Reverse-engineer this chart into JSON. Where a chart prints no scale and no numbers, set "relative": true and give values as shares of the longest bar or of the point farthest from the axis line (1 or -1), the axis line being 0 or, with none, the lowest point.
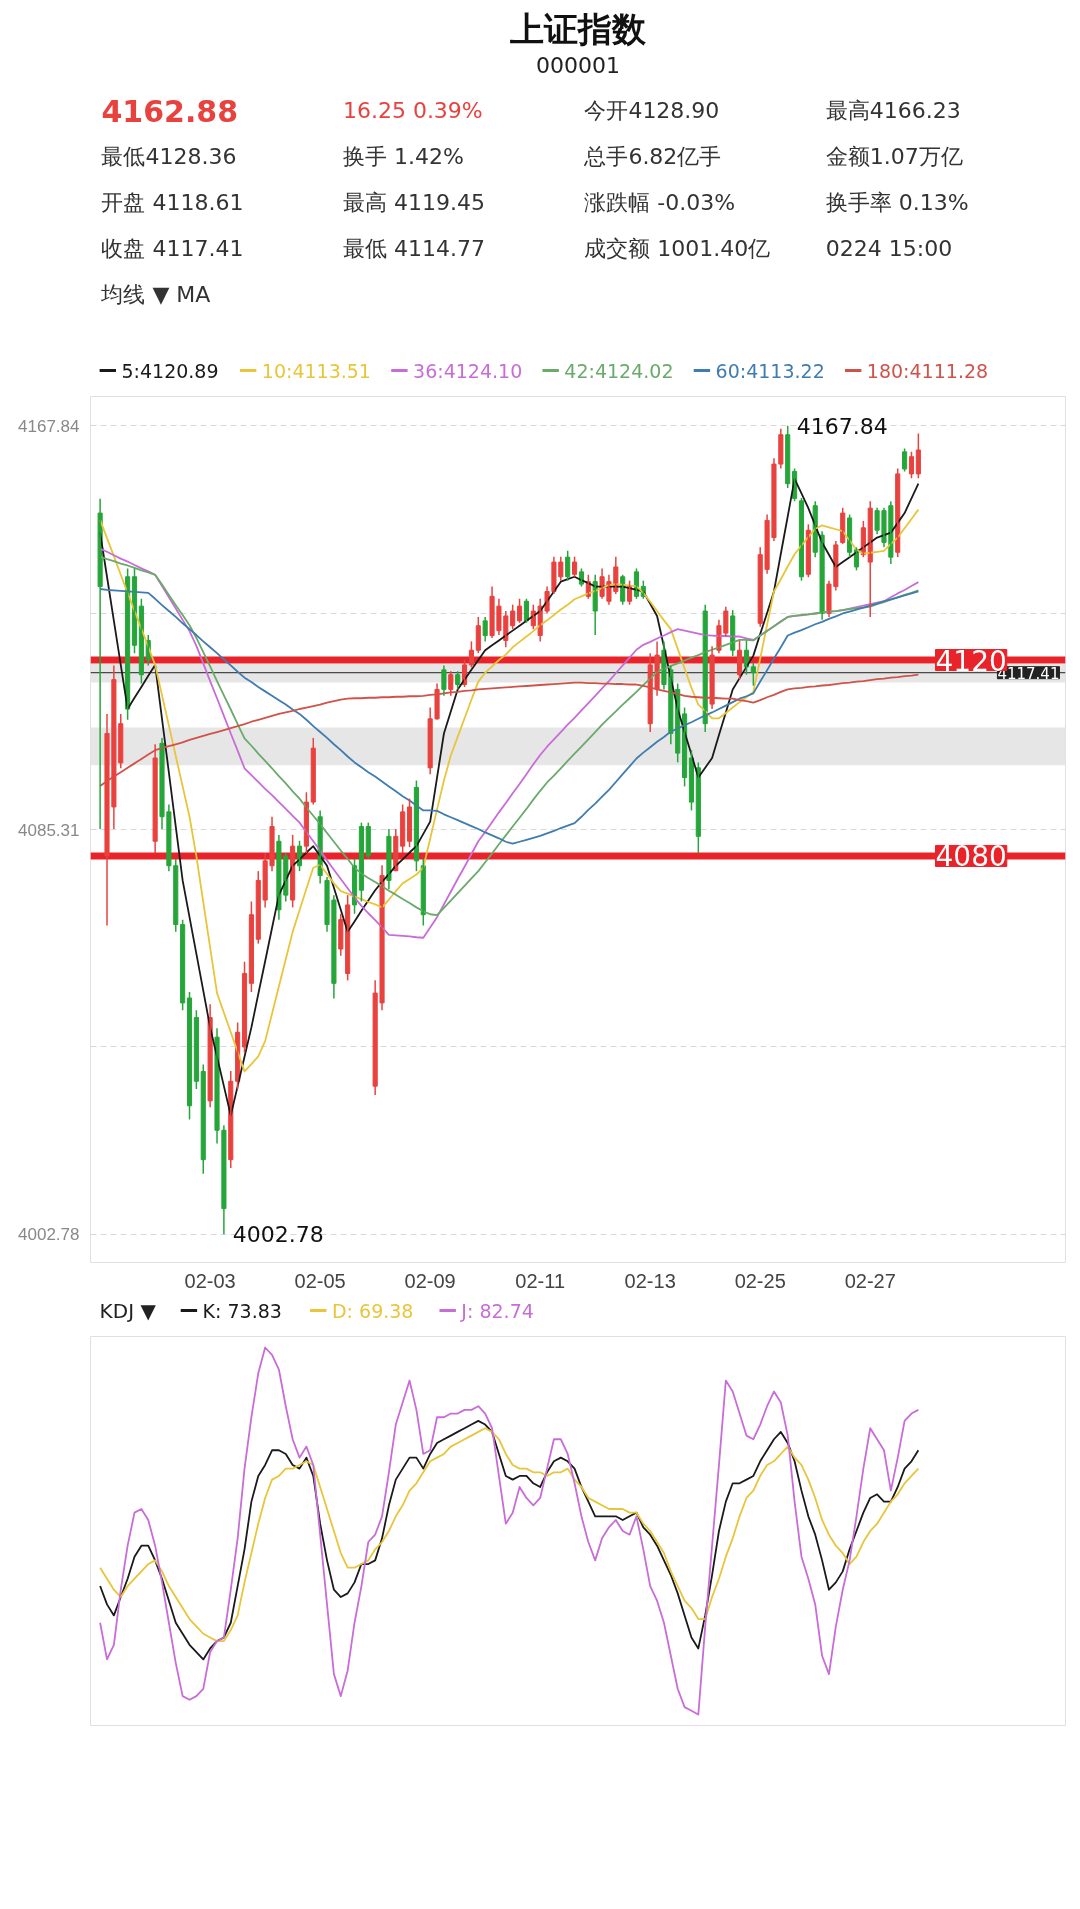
{
  "chart_data": [
    {
      "type": "candlestick",
      "title": "上证指数",
      "subtitle": "000001",
      "annotations": [
        "4162.88",
        "16.25 0.39%",
        "今开4128.90",
        "最高4166.23",
        "最低4128.36",
        "换手 1.42%",
        "总手6.82亿手",
        "金额1.07万亿",
        "开盘 4118.61",
        "最高 4119.45",
        "涨跌幅 -0.03%",
        "换手率 0.13%",
        "收盘 4117.41",
        "最低 4114.77",
        "成交额 1001.40亿",
        "0224 15:00",
        "均线 ▼ MA",
        "4167.84",
        "4002.78"
      ],
      "categories": [
        null,
        null,
        null,
        null,
        null,
        null,
        null,
        null,
        null,
        null,
        null,
        null,
        null,
        null,
        null,
        null,
        "02-03",
        null,
        null,
        null,
        null,
        null,
        null,
        null,
        null,
        null,
        null,
        null,
        null,
        null,
        null,
        null,
        "02-05",
        null,
        null,
        null,
        null,
        null,
        null,
        null,
        null,
        null,
        null,
        null,
        null,
        null,
        null,
        null,
        "02-09",
        null,
        null,
        null,
        null,
        null,
        null,
        null,
        null,
        null,
        null,
        null,
        null,
        null,
        null,
        null,
        "02-11",
        null,
        null,
        null,
        null,
        null,
        null,
        null,
        null,
        null,
        null,
        null,
        null,
        null,
        null,
        null,
        "02-13",
        null,
        null,
        null,
        null,
        null,
        null,
        null,
        null,
        null,
        null,
        null,
        null,
        null,
        null,
        null,
        "02-25",
        null,
        null,
        null,
        null,
        null,
        null,
        null,
        null,
        null,
        null,
        null,
        null,
        null,
        null,
        null,
        "02-27",
        null,
        null,
        null,
        null,
        null,
        null,
        null
      ],
      "ohlc": [
        [
          4150,
          4152.9,
          4085.5,
          4135
        ],
        [
          4080,
          4109,
          4065.8,
          4105
        ],
        [
          4090,
          4118.9,
          4085.5,
          4116
        ],
        [
          4099,
          4109,
          4097.9,
          4107
        ],
        [
          4137,
          4138.7,
          4107.8,
          4110
        ],
        [
          4137,
          4138.7,
          4121.4,
          4123
        ],
        [
          4131,
          4132.5,
          4115.2,
          4117
        ],
        [
          4124,
          4125.1,
          4118.9,
          4120
        ],
        [
          4083,
          4102.8,
          4080.6,
          4100
        ],
        [
          4103,
          4104.1,
          4085.5,
          4088
        ],
        [
          4089,
          4090.5,
          4076.9,
          4078
        ],
        [
          4078,
          4079.4,
          4064.5,
          4066
        ],
        [
          4066,
          4067,
          4048.5,
          4050
        ],
        [
          4051,
          4052.2,
          4026.2,
          4029
        ],
        [
          4047,
          4048.5,
          4032.4,
          4034
        ],
        [
          4036,
          4037.4,
          4015.1,
          4018
        ],
        [
          4030,
          4049.7,
          4028.7,
          4047
        ],
        [
          4043,
          4044.8,
          4021.3,
          4024
        ],
        [
          4024,
          4025,
          4002.78,
          4008
        ],
        [
          4018,
          4036.1,
          4016.3,
          4034
        ],
        [
          4034,
          4046,
          4032.4,
          4044
        ],
        [
          4041,
          4058.4,
          4039.8,
          4056
        ],
        [
          4054,
          4070.7,
          4052.2,
          4068
        ],
        [
          4063,
          4076.9,
          4062.1,
          4075
        ],
        [
          4071,
          4080.6,
          4069.5,
          4079
        ],
        [
          4078,
          4088,
          4076.9,
          4086
        ],
        [
          4083,
          4084.3,
          4067,
          4069
        ],
        [
          4080,
          4080.6,
          4070.7,
          4072
        ],
        [
          4071,
          4084.3,
          4069.5,
          4082
        ],
        [
          4082,
          4083.1,
          4076.9,
          4078
        ],
        [
          4082,
          4093,
          4080.6,
          4091
        ],
        [
          4091,
          4104.1,
          4090.5,
          4102
        ],
        [
          4088,
          4089.3,
          4074.4,
          4076
        ],
        [
          4075,
          4075.7,
          4064.5,
          4066
        ],
        [
          4071,
          4072,
          4050.9,
          4054
        ],
        [
          4061,
          4068.2,
          4059.6,
          4067
        ],
        [
          4056,
          4072,
          4054.6,
          4070
        ],
        [
          4078,
          4079.4,
          4068.2,
          4070
        ],
        [
          4086,
          4086.8,
          4070.7,
          4073
        ],
        [
          4086,
          4086.8,
          4079.4,
          4080
        ],
        [
          4033,
          4054.6,
          4031.2,
          4052
        ],
        [
          4050,
          4078.1,
          4048.5,
          4076
        ],
        [
          4084,
          4085.5,
          4073.2,
          4075
        ],
        [
          4077,
          4085.5,
          4076.9,
          4084
        ],
        [
          4082,
          4090.5,
          4080.6,
          4089
        ],
        [
          4083,
          4091.7,
          4081.8,
          4090
        ],
        [
          4094,
          4095.4,
          4076.9,
          4079
        ],
        [
          4078,
          4079.4,
          4065.8,
          4068
        ],
        [
          4098,
          4110.3,
          4096.7,
          4108
        ],
        [
          4108,
          4115.2,
          4107.8,
          4114
        ],
        [
          4118,
          4118.9,
          4112.7,
          4114
        ],
        [
          4114,
          4117.7,
          4112.7,
          4117
        ],
        [
          4117,
          4117.7,
          4114,
          4115
        ],
        [
          4115,
          4120.1,
          4114.5,
          4119
        ],
        [
          4119,
          4123.8,
          4118.5,
          4122
        ],
        [
          4122,
          4128.8,
          4121.4,
          4127
        ],
        [
          4128,
          4128.8,
          4123.8,
          4125
        ],
        [
          4125,
          4135,
          4124.5,
          4133
        ],
        [
          4126,
          4132.5,
          4125.1,
          4131
        ],
        [
          4124,
          4130,
          4122.6,
          4129
        ],
        [
          4127,
          4131.3,
          4126.3,
          4130
        ],
        [
          4128,
          4132.5,
          4127.6,
          4131
        ],
        [
          4132,
          4132.5,
          4127.6,
          4128
        ],
        [
          4127,
          4131.3,
          4126.3,
          4130
        ],
        [
          4125,
          4132.5,
          4123.8,
          4131
        ],
        [
          4130,
          4135,
          4129.5,
          4134
        ],
        [
          4134,
          4141.1,
          4133.5,
          4140
        ],
        [
          4137,
          4141.1,
          4136.2,
          4140
        ],
        [
          4141,
          4142.3,
          4136.2,
          4137
        ],
        [
          4137.5,
          4141.1,
          4137,
          4140
        ],
        [
          4138,
          4138.7,
          4135,
          4135.5
        ],
        [
          4133,
          4137.4,
          4132.5,
          4136
        ],
        [
          4136,
          4137.4,
          4125.1,
          4130
        ],
        [
          4133,
          4138.7,
          4132.5,
          4137
        ],
        [
          4132,
          4137.4,
          4131.3,
          4136
        ],
        [
          4134,
          4141.1,
          4133.5,
          4139
        ],
        [
          4137,
          4137.4,
          4131.3,
          4132
        ],
        [
          4132,
          4136.2,
          4131.3,
          4135
        ],
        [
          4138,
          4138.7,
          4132.5,
          4133
        ],
        [
          4135,
          4136.2,
          4132.5,
          4133
        ],
        [
          4107,
          4121.4,
          4105.3,
          4119
        ],
        [
          4114,
          4123.8,
          4112.7,
          4121
        ],
        [
          4122,
          4123.8,
          4114,
          4115
        ],
        [
          4118,
          4118.9,
          4102.8,
          4105
        ],
        [
          4114,
          4115.2,
          4099.1,
          4101
        ],
        [
          4109,
          4110.3,
          4094.2,
          4096
        ],
        [
          4100,
          4101.6,
          4089.3,
          4091
        ],
        [
          4098,
          4099.1,
          4080.6,
          4084
        ],
        [
          4130,
          4131.3,
          4105.3,
          4107
        ],
        [
          4111,
          4122.8,
          4110,
          4121
        ],
        [
          4122,
          4128.2,
          4121.4,
          4127
        ],
        [
          4125.5,
          4130.9,
          4124.8,
          4130
        ],
        [
          4129,
          4130.2,
          4120.8,
          4122
        ],
        [
          4117,
          4124,
          4116,
          4122
        ],
        [
          4122,
          4124,
          4117,
          4118.6
        ],
        [
          4118.61,
          4119.45,
          4114.77,
          4117.41
        ],
        [
          4127.5,
          4143,
          4126.8,
          4141.5
        ],
        [
          4138.5,
          4149.7,
          4137.6,
          4148.5
        ],
        [
          4145,
          4161.2,
          4144.3,
          4160
        ],
        [
          4160,
          4167.2,
          4159.1,
          4166
        ],
        [
          4166,
          4167.84,
          4155.1,
          4156
        ],
        [
          4158.5,
          4159.1,
          4152.4,
          4153
        ],
        [
          4152.5,
          4153.1,
          4136.2,
          4137
        ],
        [
          4137.5,
          4147.7,
          4136.9,
          4146.5
        ],
        [
          4151.5,
          4152.4,
          4141,
          4142
        ],
        [
          4145.5,
          4146.3,
          4128.2,
          4129.5
        ],
        [
          4129.5,
          4136.2,
          4128.8,
          4135.5
        ],
        [
          4135,
          4144.3,
          4134.2,
          4143.5
        ],
        [
          4144,
          4151.1,
          4143.7,
          4150
        ],
        [
          4149,
          4149.7,
          4141,
          4142
        ],
        [
          4142.5,
          4143,
          4138.3,
          4139
        ],
        [
          4141.5,
          4148.4,
          4141,
          4147
        ],
        [
          4140,
          4152.4,
          4128.8,
          4151
        ],
        [
          4150.5,
          4151.1,
          4145.7,
          4146.5
        ],
        [
          4150.5,
          4151.1,
          4143,
          4144
        ],
        [
          4151.5,
          4152.4,
          4139.6,
          4141
        ],
        [
          4142,
          4159.1,
          4141,
          4158
        ],
        [
          4162.5,
          4163.2,
          4158.5,
          4159
        ],
        [
          4158,
          4162.5,
          4157.1,
          4161.5
        ],
        [
          4158,
          4166.23,
          4157.1,
          4162.88
        ]
      ],
      "series": [
        {
          "name": "5:4120.89",
          "type": "line",
          "color": "#1a1a1a",
          "values": [
            4146,
            4137,
            4128,
            4119,
            4110,
            4112.3,
            4114.5,
            4116.8,
            4119,
            4108,
            4097,
            4086,
            4075,
            4067.5,
            4060,
            4052.5,
            4045,
            4039,
            4033,
            4027,
            4033,
            4039,
            4045,
            4051.8,
            4058.5,
            4065.3,
            4072,
            4075,
            4078,
            4079.3,
            4080.7,
            4082,
            4080,
            4078,
            4073.5,
            4069,
            4064.5,
            4066.6,
            4068.8,
            4070.9,
            4073,
            4074.7,
            4076.3,
            4078,
            4079.3,
            4080.7,
            4082,
            4084.5,
            4087,
            4096,
            4105,
            4109.5,
            4114,
            4116,
            4118,
            4120,
            4122,
            4123,
            4124,
            4125,
            4126,
            4127,
            4128,
            4129,
            4130,
            4132,
            4134,
            4136,
            4136.5,
            4137,
            4136.3,
            4135.7,
            4135,
            4135,
            4135,
            4135,
            4135,
            4134.7,
            4134.3,
            4134,
            4131.5,
            4129,
            4122.7,
            4116.3,
            4110,
            4105.3,
            4100.7,
            4096,
            4098,
            4100,
            4104.7,
            4109.3,
            4114,
            4116.3,
            4118.6,
            4120.9,
            4125.3,
            4129.6,
            4134,
            4141.7,
            4149.3,
            4157,
            4154,
            4151,
            4147.5,
            4144,
            4141.5,
            4139,
            4140,
            4141,
            4142,
            4143,
            4144,
            4145,
            4145.5,
            4146,
            4148,
            4150,
            4153,
            4156
          ]
        },
        {
          "name": "10:4113.51",
          "type": "line",
          "color": "#e8c53a",
          "values": [
            4148.6,
            4144.9,
            4141.2,
            4137.4,
            4133.7,
            4130,
            4126.4,
            4122.7,
            4119,
            4112.8,
            4106.6,
            4100.4,
            4094.2,
            4088,
            4079.9,
            4070.6,
            4061.3,
            4052,
            4048,
            4044,
            4040,
            4036,
            4037.5,
            4039.1,
            4042.2,
            4047.8,
            4053.4,
            4058.9,
            4064.5,
            4068.9,
            4073.3,
            4077.6,
            4078.2,
            4076.3,
            4074.4,
            4072.8,
            4072.3,
            4071.7,
            4071.2,
            4070.6,
            4070.1,
            4069.5,
            4071.1,
            4072.8,
            4074.4,
            4075.3,
            4076.2,
            4077.6,
            4083.5,
            4089.5,
            4095.4,
            4100.5,
            4104.3,
            4108.1,
            4111.9,
            4115.6,
            4117.4,
            4118.7,
            4120,
            4121.1,
            4122.6,
            4123.7,
            4124.8,
            4125.9,
            4127.1,
            4128.1,
            4129.2,
            4130.3,
            4131.3,
            4132.4,
            4133,
            4133.6,
            4134.1,
            4134.7,
            4135.3,
            4135.5,
            4135.4,
            4135.2,
            4135.1,
            4133.7,
            4131.9,
            4130,
            4128.1,
            4126.3,
            4122.3,
            4118.3,
            4114.3,
            4110.9,
            4109.6,
            4108.1,
            4108.1,
            4109.2,
            4110.3,
            4111.4,
            4112.4,
            4113.5,
            4120.3,
            4127.2,
            4134,
            4136.5,
            4139.1,
            4141.6,
            4143.4,
            4145.1,
            4146.8,
            4147.5,
            4147.1,
            4146.7,
            4146.3,
            4144.4,
            4142.5,
            4141.7,
            4141.9,
            4142.1,
            4142.3,
            4143.7,
            4145,
            4146.9,
            4148.8,
            4150.7
          ]
        },
        {
          "name": "36:4124.10",
          "type": "line",
          "color": "#c86dd7",
          "values": [
            4142.7,
            4142.1,
            4141.4,
            4140.7,
            4140.1,
            4139.4,
            4138.7,
            4138.1,
            4137.4,
            4135.1,
            4132.8,
            4130.5,
            4128.2,
            4125.9,
            4122.9,
            4119.3,
            4115.7,
            4112.2,
            4108.6,
            4105,
            4101.5,
            4097.9,
            4096.5,
            4095.1,
            4093.7,
            4092.4,
            4091,
            4089.6,
            4088.2,
            4086.8,
            4084.9,
            4083,
            4081.1,
            4079.1,
            4077.2,
            4075.3,
            4073.4,
            4071.5,
            4069.8,
            4068.3,
            4066.9,
            4065.4,
            4063.9,
            4063.8,
            4063.7,
            4063.6,
            4063.4,
            4063.3,
            4065.4,
            4067.5,
            4070.1,
            4072.7,
            4075.3,
            4077.8,
            4080.4,
            4083,
            4084.9,
            4086.9,
            4088.9,
            4090.8,
            4092.8,
            4094.7,
            4096.7,
            4098.7,
            4100.6,
            4102.3,
            4103.8,
            4105.3,
            4106.8,
            4108.2,
            4109.7,
            4111.2,
            4112.7,
            4114.2,
            4115.7,
            4117.3,
            4118.9,
            4120.5,
            4122.1,
            4123.1,
            4123.7,
            4124.4,
            4125,
            4125.7,
            4126.3,
            4126,
            4125.7,
            4125.4,
            4125.1,
            4125,
            4124.9,
            4124.9,
            4124.8,
            4124.8,
            4124.4,
            4124.1,
            4125,
            4126,
            4126.9,
            4127.9,
            4128.8,
            4129,
            4129.1,
            4129.3,
            4129.5,
            4129.7,
            4129.9,
            4130,
            4130.2,
            4130.5,
            4130.8,
            4131.1,
            4131.4,
            4131.7,
            4132,
            4132.8,
            4133.6,
            4134.3,
            4135.1,
            4135.9
          ]
        },
        {
          "name": "42:4124.02",
          "type": "line",
          "color": "#6aaa6a",
          "values": [
            4141.1,
            4140.6,
            4140.2,
            4139.7,
            4139.3,
            4138.8,
            4138.3,
            4137.9,
            4137.4,
            4135.4,
            4133.3,
            4131.2,
            4129.2,
            4127.1,
            4124.5,
            4121.6,
            4118.7,
            4115.7,
            4112.8,
            4109.9,
            4106.9,
            4104,
            4102.5,
            4100.9,
            4099.4,
            4097.9,
            4096.3,
            4094.8,
            4093.2,
            4091.7,
            4089.9,
            4088.2,
            4086.5,
            4084.7,
            4082.9,
            4081.1,
            4079.4,
            4077.6,
            4076.4,
            4075.5,
            4074.7,
            4073.8,
            4072.9,
            4072.1,
            4071.2,
            4070.4,
            4069.5,
            4068.7,
            4068.1,
            4067.9,
            4069.4,
            4070.9,
            4072.4,
            4073.9,
            4075.4,
            4076.9,
            4078.7,
            4080.5,
            4082.4,
            4084.2,
            4086,
            4087.8,
            4089.6,
            4091.5,
            4093.3,
            4095,
            4096.4,
            4097.9,
            4099.4,
            4100.9,
            4102.3,
            4103.8,
            4105.3,
            4106.8,
            4108.2,
            4109.5,
            4110.9,
            4112.2,
            4113.5,
            4114.9,
            4116.2,
            4117.6,
            4118.2,
            4118.8,
            4119.3,
            4119.9,
            4120.5,
            4121,
            4121.6,
            4122.1,
            4122.6,
            4123.1,
            4123.6,
            4124.1,
            4124.1,
            4124,
            4125,
            4125.9,
            4126.9,
            4127.8,
            4128.8,
            4129,
            4129.2,
            4129.3,
            4129.5,
            4129.7,
            4129.9,
            4130,
            4130.2,
            4130.4,
            4130.6,
            4130.7,
            4130.9,
            4131.4,
            4131.8,
            4132.3,
            4132.8,
            4133.3,
            4133.7,
            4134.2
          ]
        },
        {
          "name": "60:4113.22",
          "type": "line",
          "color": "#3f7cb0",
          "values": [
            4134.5,
            4134.3,
            4134.2,
            4134.1,
            4134,
            4133.9,
            4133.8,
            4133.7,
            4132.5,
            4131.2,
            4130,
            4128.8,
            4127.5,
            4126.3,
            4125.1,
            4123.8,
            4122.6,
            4121.4,
            4120.1,
            4118.9,
            4117.6,
            4116.4,
            4115.5,
            4114.5,
            4113.6,
            4112.7,
            4111.8,
            4110.9,
            4109.9,
            4109,
            4107.8,
            4106.5,
            4105.3,
            4104.1,
            4102.8,
            4101.6,
            4100.3,
            4099.1,
            4098.1,
            4097.1,
            4096.2,
            4095.2,
            4094.2,
            4093.2,
            4092.2,
            4091.3,
            4090.3,
            4089.3,
            4089.3,
            4089.2,
            4088.5,
            4087.9,
            4087.3,
            4086.7,
            4086.1,
            4085.5,
            4084.8,
            4084.2,
            4083.6,
            4082.9,
            4082.5,
            4082.9,
            4083.3,
            4083.7,
            4084.1,
            4084.6,
            4085.1,
            4085.7,
            4086.2,
            4086.7,
            4088,
            4089.4,
            4090.7,
            4092.1,
            4093.5,
            4095.1,
            4096.7,
            4098.3,
            4099.9,
            4101.1,
            4102.2,
            4103.3,
            4104.3,
            4105.4,
            4106,
            4106.7,
            4107.3,
            4108,
            4108.7,
            4109.3,
            4110,
            4110.7,
            4111.4,
            4112.1,
            4112.6,
            4113.2,
            4115.6,
            4117.9,
            4120.3,
            4122.6,
            4125,
            4125.6,
            4126.1,
            4126.7,
            4127.3,
            4127.8,
            4128.4,
            4128.9,
            4129.5,
            4129.9,
            4130.3,
            4130.7,
            4131.1,
            4131.5,
            4132,
            4132.4,
            4132.8,
            4133.2,
            4133.6,
            4134
          ]
        },
        {
          "name": "180:4111.28",
          "type": "line",
          "color": "#d0534a",
          "values": [
            4094.3,
            4095.3,
            4096.2,
            4097.1,
            4098,
            4098.9,
            4099.8,
            4100.7,
            4101.6,
            4102,
            4102.4,
            4102.8,
            4103.2,
            4103.7,
            4104.1,
            4104.5,
            4104.9,
            4105.3,
            4105.7,
            4106.1,
            4106.5,
            4106.9,
            4107.4,
            4107.8,
            4108.2,
            4108.6,
            4109,
            4109.3,
            4109.6,
            4110,
            4110.3,
            4110.6,
            4110.9,
            4111.3,
            4111.6,
            4111.9,
            4112.1,
            4112.2,
            4112.2,
            4112.3,
            4112.3,
            4112.4,
            4112.4,
            4112.5,
            4112.5,
            4112.6,
            4112.6,
            4112.7,
            4112.9,
            4113,
            4113.2,
            4113.4,
            4113.5,
            4113.7,
            4113.8,
            4114,
            4114.1,
            4114.2,
            4114.3,
            4114.4,
            4114.5,
            4114.6,
            4114.7,
            4114.8,
            4114.9,
            4115,
            4115.1,
            4115.2,
            4115.3,
            4115.4,
            4115.4,
            4115.3,
            4115.3,
            4115.2,
            4115.2,
            4115.1,
            4115.1,
            4115,
            4115,
            4114.7,
            4114.4,
            4114,
            4113.7,
            4113.4,
            4113.1,
            4112.7,
            4112.5,
            4112.4,
            4112.3,
            4112.3,
            4112.2,
            4112.1,
            4112.1,
            4111.8,
            4111.6,
            4111.3,
            4111.8,
            4112.4,
            4112.9,
            4113.5,
            4114,
            4114.2,
            4114.3,
            4114.5,
            4114.6,
            4114.8,
            4114.9,
            4115.1,
            4115.3,
            4115.4,
            4115.6,
            4115.7,
            4115.9,
            4116.1,
            4116.2,
            4116.4,
            4116.5,
            4116.7,
            4116.8,
            4117
          ]
        }
      ],
      "ylim": [
        3997,
        4173.8
      ],
      "yticks": [
        {
          "value": 4173.8,
          "label": null
        },
        4167.84,
        {
          "value": 4129.55,
          "label": null
        },
        4085.31,
        {
          "value": 4041.06,
          "label": null
        },
        4002.78
      ],
      "grid": "y",
      "legend": "top",
      "ref_lines": [
        {
          "axis": "y",
          "value": 4117.41,
          "label": "4117.41",
          "color": "#222222",
          "line_style": "solid"
        },
        {
          "axis": "y",
          "value": 4120,
          "label": "4120",
          "color": "#e8232a",
          "line_style": "solid"
        },
        {
          "axis": "y",
          "value": 4080,
          "label": "4080",
          "color": "#e8232a",
          "line_style": "solid"
        }
      ],
      "bands": [
        {
          "axis": "y",
          "from": 4115.4,
          "to": 4119.2,
          "color": "#e6e6e6"
        },
        {
          "axis": "y",
          "from": 4098.5,
          "to": 4106.2,
          "color": "#e6e6e6"
        }
      ]
    },
    {
      "type": "line",
      "relative": true,
      "annotations": [
        "KDJ ▼"
      ],
      "legend": "top",
      "categories": [
        null,
        null,
        null,
        null,
        null,
        null,
        null,
        null,
        null,
        null,
        null,
        null,
        null,
        null,
        null,
        null,
        null,
        null,
        null,
        null,
        null,
        null,
        null,
        null,
        null,
        null,
        null,
        null,
        null,
        null,
        null,
        null,
        null,
        null,
        null,
        null,
        null,
        null,
        null,
        null,
        null,
        null,
        null,
        null,
        null,
        null,
        null,
        null,
        null,
        null,
        null,
        null,
        null,
        null,
        null,
        null,
        null,
        null,
        null,
        null,
        null,
        null,
        null,
        null,
        null,
        null,
        null,
        null,
        null,
        null,
        null,
        null,
        null,
        null,
        null,
        null,
        null,
        null,
        null,
        null,
        null,
        null,
        null,
        null,
        null,
        null,
        null,
        null,
        null,
        null,
        null,
        null,
        null,
        null,
        null,
        null,
        null,
        null,
        null,
        null,
        null,
        null,
        null,
        null,
        null,
        null,
        null,
        null,
        null,
        null,
        null,
        null,
        null,
        null,
        null,
        null,
        null,
        null,
        null,
        null
      ],
      "series": [
        {
          "name": "K: 73.83",
          "color": "#1a1a1a",
          "values": [
            0.35,
            0.3,
            0.27,
            0.32,
            0.37,
            0.43,
            0.46,
            0.46,
            0.42,
            0.37,
            0.31,
            0.25,
            0.22,
            0.19,
            0.17,
            0.15,
            0.18,
            0.2,
            0.21,
            0.25,
            0.35,
            0.45,
            0.58,
            0.65,
            0.68,
            0.72,
            0.72,
            0.71,
            0.68,
            0.67,
            0.7,
            0.65,
            0.52,
            0.42,
            0.34,
            0.32,
            0.33,
            0.36,
            0.41,
            0.41,
            0.42,
            0.48,
            0.57,
            0.64,
            0.67,
            0.7,
            0.7,
            0.67,
            0.71,
            0.74,
            0.75,
            0.76,
            0.77,
            0.78,
            0.79,
            0.8,
            0.79,
            0.77,
            0.71,
            0.65,
            0.64,
            0.65,
            0.65,
            0.63,
            0.62,
            0.66,
            0.69,
            0.7,
            0.69,
            0.67,
            0.62,
            0.58,
            0.54,
            0.54,
            0.54,
            0.54,
            0.53,
            0.54,
            0.55,
            0.51,
            0.49,
            0.46,
            0.42,
            0.38,
            0.33,
            0.27,
            0.21,
            0.18,
            0.27,
            0.38,
            0.5,
            0.58,
            0.63,
            0.63,
            0.64,
            0.65,
            0.69,
            0.72,
            0.75,
            0.77,
            0.74,
            0.69,
            0.61,
            0.54,
            0.49,
            0.42,
            0.34,
            0.36,
            0.39,
            0.45,
            0.5,
            0.55,
            0.59,
            0.6,
            0.58,
            0.58,
            0.62,
            0.67,
            0.69,
            0.72
          ]
        },
        {
          "name": "D: 69.38",
          "color": "#e8c53a",
          "values": [
            0.4,
            0.37,
            0.34,
            0.32,
            0.35,
            0.37,
            0.39,
            0.41,
            0.42,
            0.39,
            0.35,
            0.32,
            0.29,
            0.26,
            0.24,
            0.22,
            0.21,
            0.2,
            0.2,
            0.23,
            0.27,
            0.36,
            0.44,
            0.52,
            0.59,
            0.64,
            0.65,
            0.67,
            0.67,
            0.68,
            0.69,
            0.68,
            0.62,
            0.56,
            0.5,
            0.44,
            0.4,
            0.4,
            0.41,
            0.42,
            0.45,
            0.47,
            0.5,
            0.54,
            0.57,
            0.61,
            0.63,
            0.66,
            0.69,
            0.7,
            0.71,
            0.73,
            0.74,
            0.75,
            0.76,
            0.77,
            0.78,
            0.77,
            0.75,
            0.71,
            0.68,
            0.67,
            0.67,
            0.66,
            0.66,
            0.65,
            0.66,
            0.66,
            0.67,
            0.64,
            0.62,
            0.59,
            0.58,
            0.57,
            0.56,
            0.56,
            0.56,
            0.55,
            0.55,
            0.52,
            0.5,
            0.47,
            0.44,
            0.39,
            0.35,
            0.31,
            0.29,
            0.26,
            0.26,
            0.32,
            0.37,
            0.43,
            0.48,
            0.54,
            0.59,
            0.61,
            0.65,
            0.68,
            0.69,
            0.71,
            0.73,
            0.7,
            0.68,
            0.64,
            0.59,
            0.53,
            0.49,
            0.46,
            0.44,
            0.41,
            0.43,
            0.47,
            0.5,
            0.52,
            0.55,
            0.58,
            0.6,
            0.63,
            0.65,
            0.67
          ]
        },
        {
          "name": "J: 82.74",
          "color": "#c86dd7",
          "values": [
            0.25,
            0.15,
            0.19,
            0.34,
            0.46,
            0.55,
            0.56,
            0.53,
            0.46,
            0.36,
            0.25,
            0.14,
            0.05,
            0.04,
            0.05,
            0.07,
            0.17,
            0.2,
            0.21,
            0.34,
            0.48,
            0.67,
            0.81,
            0.93,
            1,
            0.98,
            0.94,
            0.84,
            0.75,
            0.7,
            0.73,
            0.68,
            0.49,
            0.3,
            0.11,
            0.05,
            0.12,
            0.25,
            0.35,
            0.47,
            0.49,
            0.54,
            0.66,
            0.79,
            0.85,
            0.91,
            0.83,
            0.71,
            0.72,
            0.81,
            0.81,
            0.82,
            0.82,
            0.83,
            0.83,
            0.84,
            0.82,
            0.78,
            0.65,
            0.52,
            0.55,
            0.62,
            0.59,
            0.57,
            0.59,
            0.67,
            0.75,
            0.75,
            0.71,
            0.63,
            0.54,
            0.47,
            0.42,
            0.48,
            0.51,
            0.53,
            0.5,
            0.49,
            0.54,
            0.45,
            0.35,
            0.31,
            0.25,
            0.16,
            0.07,
            0.02,
            0.01,
            0,
            0.24,
            0.46,
            0.68,
            0.91,
            0.88,
            0.82,
            0.76,
            0.75,
            0.79,
            0.84,
            0.88,
            0.85,
            0.76,
            0.58,
            0.43,
            0.37,
            0.3,
            0.16,
            0.11,
            0.24,
            0.34,
            0.42,
            0.54,
            0.67,
            0.78,
            0.75,
            0.72,
            0.61,
            0.7,
            0.8,
            0.82,
            0.83
          ]
        }
      ]
    }
  ]
}
